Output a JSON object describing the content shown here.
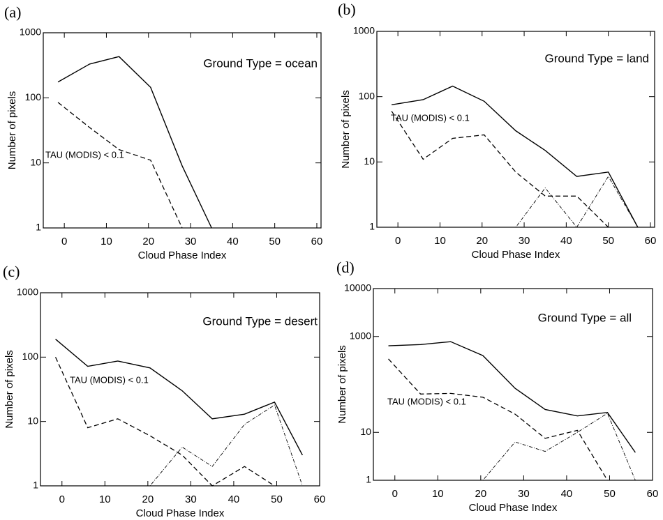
{
  "chart_data": [
    {
      "type": "line",
      "title": "(a)",
      "annotations": [
        "Ground Type = ocean",
        "TAU (MODIS) < 0.1"
      ],
      "xlabel": "Cloud Phase Index",
      "ylabel": "Number of pixels",
      "log_y": true,
      "x": [
        -1.5,
        6,
        13,
        20.5,
        28,
        35,
        42.5,
        50,
        57
      ],
      "series": [
        {
          "color": "#000000",
          "line_style": "solid",
          "values": [
            175,
            330,
            430,
            145,
            9,
            1,
            null,
            null,
            null
          ]
        },
        {
          "color": "#000000",
          "line_style": "dashed",
          "values": [
            85,
            35,
            16,
            11,
            1,
            null,
            null,
            null,
            null
          ]
        }
      ],
      "xlim": [
        -5,
        61
      ],
      "ylim": [
        1,
        1000
      ],
      "xticks": [
        0,
        10,
        20,
        30,
        40,
        50,
        60
      ],
      "yticks": [
        1,
        10,
        100,
        1000
      ]
    },
    {
      "type": "line",
      "title": "(b)",
      "annotations": [
        "Ground Type = land",
        "TAU (MODIS) < 0.1"
      ],
      "xlabel": "Cloud Phase Index",
      "ylabel": "Number of pixels",
      "log_y": true,
      "x": [
        -1.5,
        6,
        13,
        20.5,
        28,
        35,
        42.5,
        50,
        57
      ],
      "series": [
        {
          "color": "#000000",
          "line_style": "solid",
          "values": [
            75,
            90,
            145,
            85,
            30,
            15,
            6,
            7,
            1
          ]
        },
        {
          "color": "#000000",
          "line_style": "dashed",
          "values": [
            60,
            11,
            23,
            26,
            7,
            3,
            3,
            1,
            null
          ]
        },
        {
          "color": "#000000",
          "line_style": "dashdot",
          "values": [
            null,
            null,
            null,
            null,
            1,
            4,
            1,
            6,
            1
          ]
        }
      ],
      "xlim": [
        -5,
        61
      ],
      "ylim": [
        1,
        1000
      ],
      "xticks": [
        0,
        10,
        20,
        30,
        40,
        50,
        60
      ],
      "yticks": [
        1,
        10,
        100,
        1000
      ]
    },
    {
      "type": "line",
      "title": "(c)",
      "annotations": [
        "Ground Type = desert",
        "TAU (MODIS) < 0.1"
      ],
      "xlabel": "Cloud Phase Index",
      "ylabel": "Number of pixels",
      "log_y": true,
      "x": [
        -1.5,
        6,
        13,
        20.5,
        28,
        35,
        42.5,
        49.5,
        56
      ],
      "series": [
        {
          "color": "#000000",
          "line_style": "solid",
          "values": [
            190,
            72,
            87,
            68,
            30,
            11,
            13,
            20,
            3
          ]
        },
        {
          "color": "#000000",
          "line_style": "dashed",
          "values": [
            100,
            8,
            11,
            6,
            3,
            1,
            2,
            1,
            null
          ]
        },
        {
          "color": "#000000",
          "line_style": "dashdot",
          "values": [
            null,
            null,
            null,
            1,
            4,
            2,
            9,
            18,
            1
          ]
        }
      ],
      "xlim": [
        -5,
        60
      ],
      "ylim": [
        1,
        1000
      ],
      "xticks": [
        0,
        10,
        20,
        30,
        40,
        50,
        60
      ],
      "yticks": [
        1,
        10,
        100,
        1000
      ]
    },
    {
      "type": "line",
      "title": "(d)",
      "annotations": [
        "Ground Type = all",
        "TAU (MODIS) < 0.1"
      ],
      "xlabel": "Cloud Phase Index",
      "ylabel": "Number of pixels",
      "log_y": true,
      "x": [
        -1.5,
        6,
        13,
        20.5,
        28,
        35,
        42.5,
        49.5,
        56
      ],
      "series": [
        {
          "color": "#000000",
          "line_style": "solid",
          "values": [
            640,
            680,
            780,
            400,
            83,
            30,
            22,
            26,
            3.8
          ]
        },
        {
          "color": "#000000",
          "line_style": "dashed",
          "values": [
            340,
            63,
            65,
            54,
            24,
            7.5,
            11,
            1,
            null
          ]
        },
        {
          "color": "#000000",
          "line_style": "dashdot",
          "values": [
            null,
            null,
            null,
            1,
            6.3,
            4,
            10,
            25,
            1
          ]
        }
      ],
      "xlim": [
        -5,
        60
      ],
      "ylim": [
        1,
        10000
      ],
      "xticks": [
        0,
        10,
        20,
        30,
        40,
        50,
        60
      ],
      "yticks": [
        1,
        10,
        1000,
        10000
      ]
    }
  ]
}
